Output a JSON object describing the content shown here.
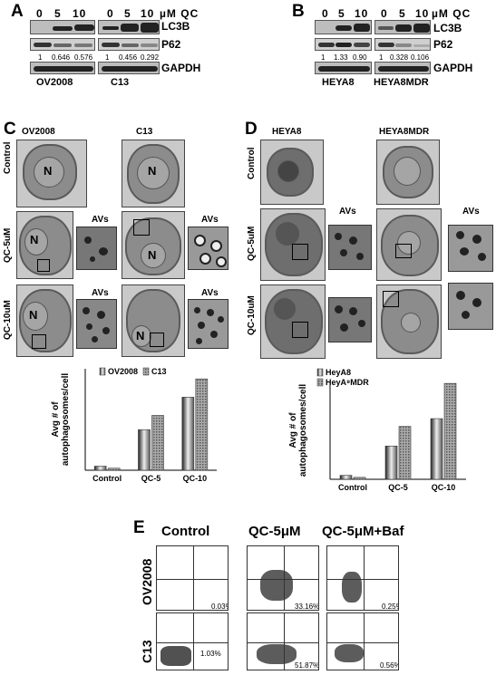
{
  "panels": {
    "A": "A",
    "B": "B",
    "C": "C",
    "D": "D",
    "E": "E"
  },
  "panelA": {
    "conc": [
      "0",
      "5",
      "10",
      "0",
      "5",
      "10"
    ],
    "unit": "µM QC",
    "rows": [
      "LC3B",
      "P62",
      "GAPDH"
    ],
    "p62_quant": [
      "1",
      "0.646",
      "0.576",
      "1",
      "0.456",
      "0.292"
    ],
    "cells": [
      "OV2008",
      "C13"
    ]
  },
  "panelB": {
    "conc": [
      "0",
      "5",
      "10",
      "0",
      "5",
      "10"
    ],
    "unit": "µM QC",
    "rows": [
      "LC3B",
      "P62",
      "GAPDH"
    ],
    "p62_quant": [
      "1",
      "1.33",
      "0.90",
      "1",
      "0.328",
      "0.106"
    ],
    "cells": [
      "HEYA8",
      "HEYA8MDR"
    ]
  },
  "panelC": {
    "cols": [
      "OV2008",
      "C13"
    ],
    "rows": [
      "Control",
      "QC-5uM",
      "QC-10uM"
    ],
    "nucleus": "N",
    "av": "AVs"
  },
  "panelD": {
    "cols": [
      "HEYA8",
      "HEYA8MDR"
    ],
    "rows": [
      "Control",
      "QC-5uM",
      "QC-10uM"
    ],
    "av": "AVs"
  },
  "panelE": {
    "cols": [
      "Control",
      "QC-5μM",
      "QC-5μM+Baf"
    ],
    "rows": [
      "OV2008",
      "C13"
    ],
    "pct_ov2008": [
      "0.03%",
      "33.16%",
      "0.25%"
    ],
    "pct_c13": [
      "1.03%",
      "51.87%",
      "0.56%"
    ]
  },
  "chart_data": [
    {
      "type": "bar",
      "ylabel": "Avg # of autophagosomes/cell",
      "categories": [
        "Control",
        "QC-5",
        "QC-10"
      ],
      "series": [
        {
          "name": "OV2008",
          "values": [
            1,
            10,
            18
          ]
        },
        {
          "name": "C13",
          "values": [
            0.5,
            13.5,
            22.5
          ]
        }
      ],
      "ylim": [
        0,
        25
      ],
      "yticks": [
        "0",
        "5",
        "10",
        "15",
        "20",
        "25"
      ],
      "legend": "top",
      "grid": false
    },
    {
      "type": "bar",
      "ylabel": "Avg # of autophagosomes/cell",
      "categories": [
        "Control",
        "QC-5",
        "QC-10"
      ],
      "series": [
        {
          "name": "HeyA8",
          "values": [
            1,
            8.5,
            15.5
          ]
        },
        {
          "name": "HeyA⁸MDR",
          "values": [
            0.5,
            13.5,
            24.5
          ]
        }
      ],
      "ylim": [
        0,
        25
      ],
      "yticks": [
        "0",
        "5",
        "10",
        "15",
        "20",
        "25"
      ],
      "legend": "top-left",
      "grid": false
    }
  ]
}
